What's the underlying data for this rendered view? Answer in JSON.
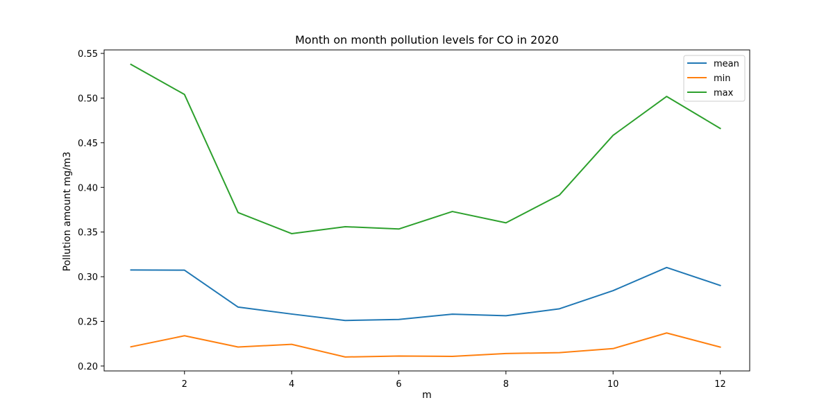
{
  "chart_data": {
    "type": "line",
    "title": "Month on month pollution levels for CO in 2020",
    "xlabel": "m",
    "ylabel": "Pollution amount mg/m3",
    "xlim": [
      0.5,
      12.55
    ],
    "ylim": [
      0.1945,
      0.5539
    ],
    "xticks": [
      2,
      4,
      6,
      8,
      10,
      12
    ],
    "xtick_labels": [
      "2",
      "4",
      "6",
      "8",
      "10",
      "12"
    ],
    "yticks": [
      0.2,
      0.25,
      0.3,
      0.35,
      0.4,
      0.45,
      0.5,
      0.55
    ],
    "ytick_labels": [
      "0.20",
      "0.25",
      "0.30",
      "0.35",
      "0.40",
      "0.45",
      "0.50",
      "0.55"
    ],
    "grid": false,
    "legend_position": "top-right",
    "x": [
      1,
      2,
      3,
      4,
      5,
      6,
      7,
      8,
      9,
      10,
      11,
      12
    ],
    "series": [
      {
        "name": "mean",
        "color": "#1f77b4",
        "values": [
          0.3075,
          0.3073,
          0.266,
          0.2582,
          0.251,
          0.2521,
          0.2581,
          0.2563,
          0.2641,
          0.2844,
          0.3103,
          0.2902
        ]
      },
      {
        "name": "min",
        "color": "#ff7f0e",
        "values": [
          0.2215,
          0.2339,
          0.2213,
          0.2243,
          0.2101,
          0.2112,
          0.2108,
          0.214,
          0.215,
          0.2195,
          0.237,
          0.2212
        ]
      },
      {
        "name": "max",
        "color": "#2ca02c",
        "values": [
          0.5377,
          0.504,
          0.3718,
          0.3482,
          0.356,
          0.3534,
          0.373,
          0.3603,
          0.3915,
          0.4583,
          0.5018,
          0.466
        ]
      }
    ]
  }
}
